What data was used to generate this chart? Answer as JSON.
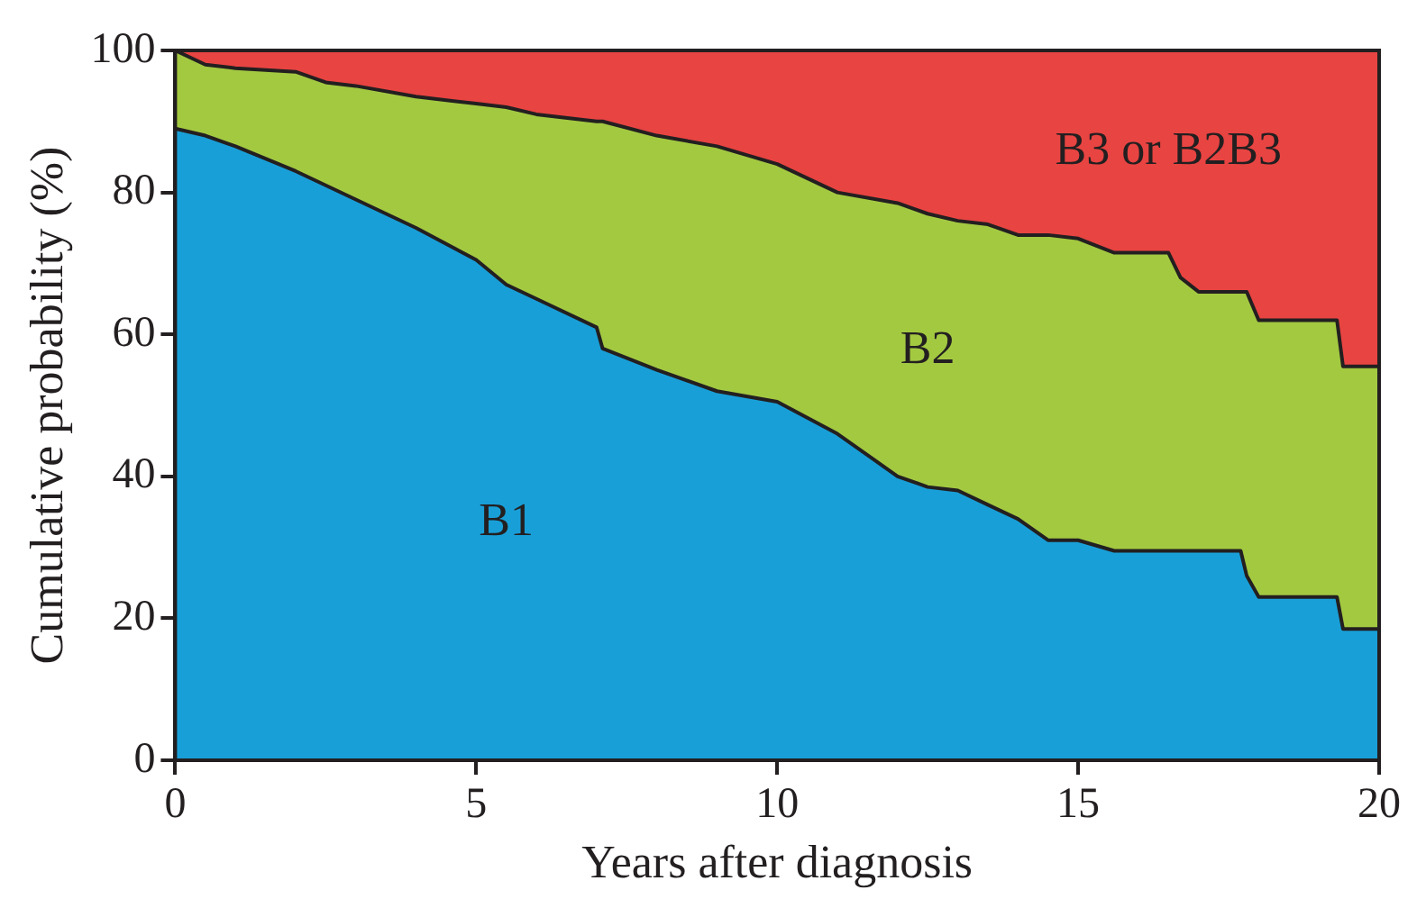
{
  "chart_data": {
    "type": "area",
    "stacked": true,
    "xlabel": "Years after diagnosis",
    "ylabel": "Cumulative probability (%)",
    "x": [
      0,
      0.5,
      1,
      2,
      2.5,
      3,
      4,
      5,
      5.5,
      6,
      7,
      7.1,
      8,
      9,
      10,
      11,
      12,
      12.5,
      13,
      13.5,
      14,
      14.5,
      15,
      15.6,
      16.5,
      16.7,
      17,
      17.7,
      17.8,
      18,
      19.3,
      19.4,
      20
    ],
    "series": [
      {
        "name": "B1",
        "color": "#199fd8",
        "values": [
          89,
          88,
          86.5,
          83,
          81,
          79,
          75,
          70.5,
          67,
          65,
          61,
          58,
          55,
          52,
          50.5,
          46,
          40,
          38.5,
          38,
          36,
          34,
          31,
          31,
          29.5,
          29.5,
          29.5,
          29.5,
          29.5,
          26,
          23,
          23,
          18.5,
          18.5
        ]
      },
      {
        "name": "B2",
        "color": "#a3c941",
        "values": [
          11,
          10,
          11,
          14,
          14.5,
          16,
          18.5,
          22,
          25,
          26,
          29,
          32,
          33,
          34.5,
          33.5,
          34,
          38.5,
          38.5,
          38,
          39.5,
          40,
          43,
          42.5,
          42,
          42,
          38.5,
          36.5,
          36.5,
          40,
          39,
          39,
          37,
          37
        ]
      },
      {
        "name": "B3 or B2B3",
        "color": "#e84442",
        "values": [
          0,
          2,
          2.5,
          3,
          4.5,
          5,
          6.5,
          7.5,
          8,
          9,
          10,
          10,
          12,
          13.5,
          16,
          20,
          21.5,
          23,
          24,
          24.5,
          26,
          26,
          26.5,
          28.5,
          28.5,
          32,
          34,
          34,
          34,
          38,
          38,
          44.5,
          44.5
        ]
      }
    ],
    "xlim": [
      0,
      20
    ],
    "xticks": [
      0,
      5,
      10,
      15,
      20
    ],
    "ylim": [
      0,
      100
    ],
    "yticks": [
      0,
      20,
      40,
      60,
      80,
      100
    ],
    "legend": false
  }
}
